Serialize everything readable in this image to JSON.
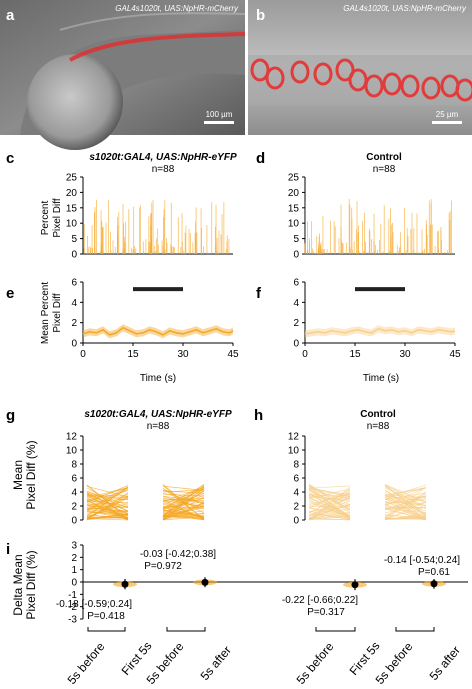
{
  "panels": {
    "a": {
      "letter": "a",
      "caption": "GAL4s1020t, UAS:NpHR-mCherry",
      "scalebar": "100 µm"
    },
    "b": {
      "letter": "b",
      "caption": "GAL4s1020t, UAS:NpHR-mCherry",
      "scalebar": "25 µm"
    },
    "c": {
      "letter": "c",
      "title": "s1020t:GAL4, UAS:NpHR-eYFP",
      "n": "n=88"
    },
    "d": {
      "letter": "d",
      "title": "Control",
      "n": "n=88"
    },
    "e": {
      "letter": "e"
    },
    "f": {
      "letter": "f"
    },
    "g": {
      "letter": "g",
      "title": "s1020t:GAL4, UAS:NpHR-eYFP",
      "n": "n=88"
    },
    "h": {
      "letter": "h",
      "title": "Control",
      "n": "n=88"
    },
    "i": {
      "letter": "i"
    }
  },
  "axes": {
    "raw_ylabel": [
      "Percent",
      "Pixel Diff"
    ],
    "mean_ylabel": [
      "Mean Percent",
      "Pixel Diff"
    ],
    "time_xlabel": "Time (s)",
    "g_ylabel": [
      "Mean",
      "Pixel Diff (%)"
    ],
    "i_ylabel": [
      "Delta Mean",
      "Pixel Diff (%)"
    ],
    "bottom_labels": [
      "5s before",
      "First 5s",
      "5s before",
      "5s after",
      "5s before",
      "First 5s",
      "5s before",
      "5s after"
    ]
  },
  "chart_data": [
    {
      "id": "c",
      "type": "line",
      "xlim": [
        0,
        45
      ],
      "ylim": [
        0,
        25
      ],
      "yticks": [
        0,
        5,
        10,
        15,
        20,
        25
      ],
      "xticks": [],
      "color": "#f5a623",
      "description_values": "88 overlaid traces of percent pixel difference over 45 s"
    },
    {
      "id": "d",
      "type": "line",
      "xlim": [
        0,
        45
      ],
      "ylim": [
        0,
        25
      ],
      "yticks": [
        0,
        5,
        10,
        15,
        20,
        25
      ],
      "xticks": [],
      "color": "#f5a623"
    },
    {
      "id": "e",
      "type": "area",
      "xlim": [
        0,
        45
      ],
      "ylim": [
        0,
        6
      ],
      "xticks": [
        0,
        15,
        30,
        45
      ],
      "yticks": [
        0,
        2,
        4,
        6
      ],
      "stim_bar": [
        15,
        30
      ],
      "x": [
        0,
        2,
        4,
        6,
        8,
        10,
        12,
        14,
        16,
        18,
        20,
        22,
        24,
        26,
        28,
        30,
        32,
        34,
        36,
        38,
        40,
        42,
        44,
        45
      ],
      "mean": [
        0.9,
        1.1,
        1.0,
        1.3,
        0.8,
        1.0,
        1.5,
        1.2,
        0.9,
        1.0,
        1.3,
        1.1,
        0.8,
        1.2,
        1.0,
        0.9,
        1.1,
        1.3,
        1.0,
        1.2,
        1.4,
        1.1,
        1.0,
        1.2
      ],
      "sem": 0.35,
      "color": "#f5a623"
    },
    {
      "id": "f",
      "type": "area",
      "xlim": [
        0,
        45
      ],
      "ylim": [
        0,
        6
      ],
      "xticks": [
        0,
        15,
        30,
        45
      ],
      "yticks": [
        0,
        2,
        4,
        6
      ],
      "stim_bar": [
        15,
        30
      ],
      "x": [
        0,
        2,
        4,
        6,
        8,
        10,
        12,
        14,
        16,
        18,
        20,
        22,
        24,
        26,
        28,
        30,
        32,
        34,
        36,
        38,
        40,
        42,
        44,
        45
      ],
      "mean": [
        0.9,
        1.0,
        1.1,
        1.0,
        1.2,
        1.1,
        1.0,
        1.2,
        1.3,
        1.1,
        1.0,
        1.4,
        1.2,
        1.3,
        1.1,
        1.2,
        1.0,
        1.3,
        1.2,
        1.1,
        1.3,
        1.2,
        1.1,
        1.2
      ],
      "sem": 0.35,
      "color": "#f8cf8a"
    },
    {
      "id": "g",
      "type": "line",
      "ylim": [
        0,
        12
      ],
      "yticks": [
        0,
        2,
        4,
        6,
        8,
        10,
        12
      ],
      "categories": [
        "5s before",
        "First 5s",
        "5s before",
        "5s after"
      ],
      "color": "#f5a623"
    },
    {
      "id": "h",
      "type": "line",
      "ylim": [
        0,
        12
      ],
      "yticks": [
        0,
        2,
        4,
        6,
        8,
        10,
        12
      ],
      "categories": [
        "5s before",
        "First 5s",
        "5s before",
        "5s after"
      ],
      "color": "#f8cf8a"
    },
    {
      "id": "i",
      "type": "scatter",
      "ylim": [
        -3,
        3
      ],
      "yticks": [
        -3,
        -2,
        -1,
        0,
        1,
        2,
        3
      ],
      "points": [
        {
          "group": "c-first",
          "value": -0.18,
          "ci": [
            -0.59,
            0.24
          ],
          "p": "P=0.418",
          "text": "-0.18 [-0.59;0.24]"
        },
        {
          "group": "c-after",
          "value": -0.03,
          "ci": [
            -0.42,
            0.38
          ],
          "p": "P=0.972",
          "text": "-0.03 [-0.42;0.38]"
        },
        {
          "group": "d-first",
          "value": -0.22,
          "ci": [
            -0.66,
            0.22
          ],
          "p": "P=0.317",
          "text": "-0.22 [-0.66;0.22]"
        },
        {
          "group": "d-after",
          "value": -0.14,
          "ci": [
            -0.54,
            0.24
          ],
          "p": "P=0.61",
          "text": "-0.14 [-0.54;0.24]"
        }
      ]
    }
  ]
}
